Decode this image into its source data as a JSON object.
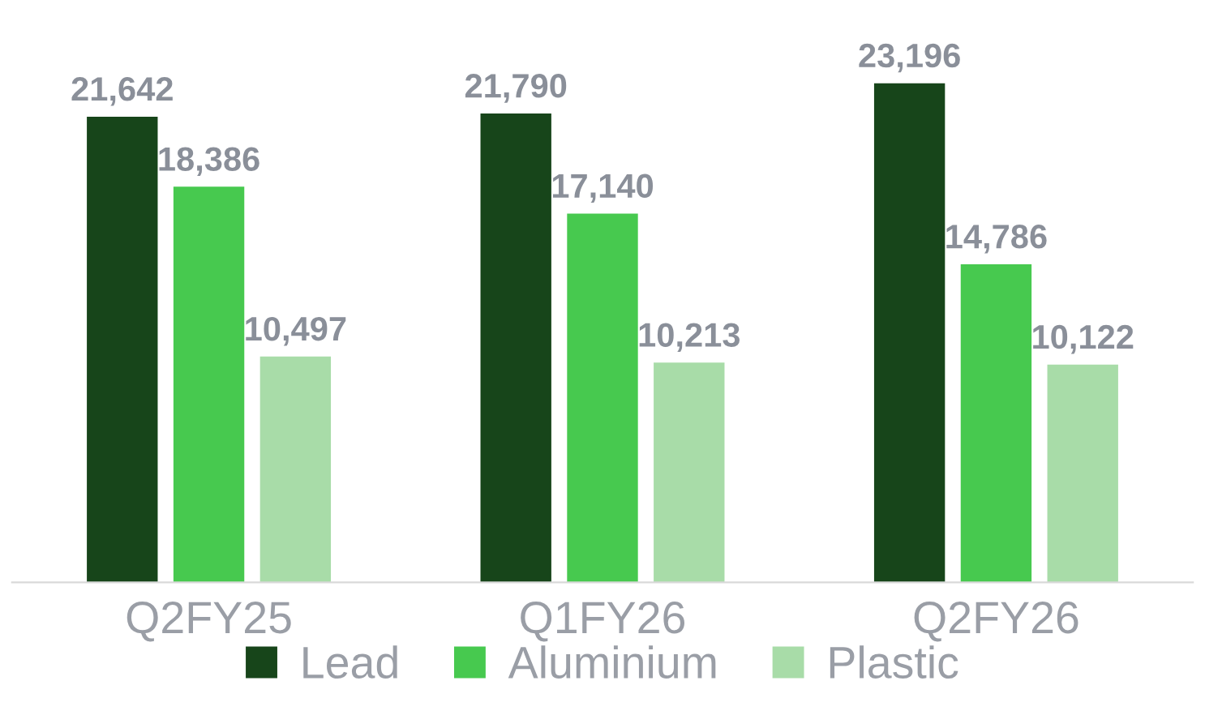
{
  "chart_data": {
    "type": "bar",
    "categories": [
      "Q2FY25",
      "Q1FY26",
      "Q2FY26"
    ],
    "series": [
      {
        "name": "Lead",
        "color": "#17451a",
        "values": [
          21642,
          21790,
          23196
        ],
        "value_labels": [
          "21,642",
          "21,790",
          "23,196"
        ]
      },
      {
        "name": "Aluminium",
        "color": "#47c94f",
        "values": [
          18386,
          17140,
          14786
        ],
        "value_labels": [
          "18,386",
          "17,140",
          "14,786"
        ]
      },
      {
        "name": "Plastic",
        "color": "#a8dca8",
        "values": [
          10497,
          10213,
          10122
        ],
        "value_labels": [
          "10,497",
          "10,213",
          "10,122"
        ]
      }
    ],
    "legend": "bottom"
  }
}
